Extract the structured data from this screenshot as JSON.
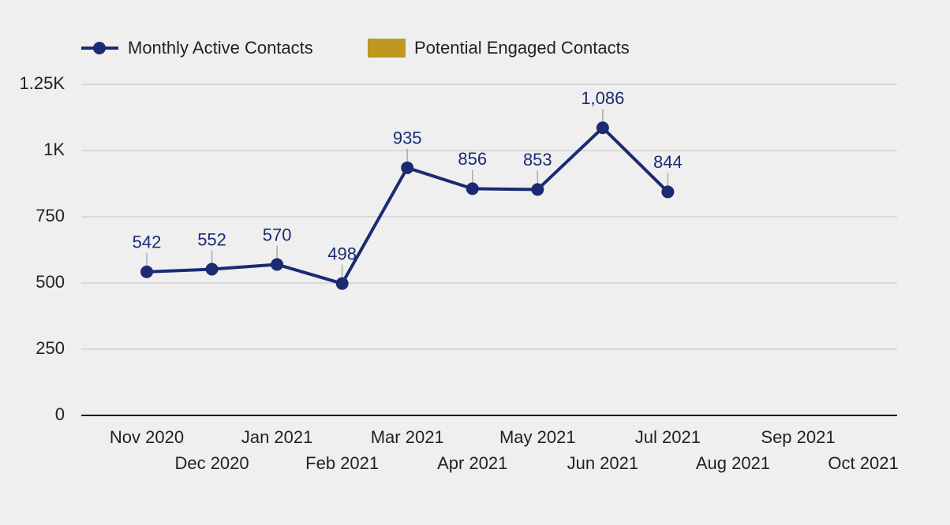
{
  "chart_data": {
    "type": "line",
    "categories": [
      "Nov 2020",
      "Dec 2020",
      "Jan 2021",
      "Feb 2021",
      "Mar 2021",
      "Apr 2021",
      "May 2021",
      "Jun 2021",
      "Jul 2021",
      "Aug 2021",
      "Sep 2021",
      "Oct 2021"
    ],
    "series": [
      {
        "name": "Monthly Active Contacts",
        "color": "#1b2a72",
        "values": [
          542,
          552,
          570,
          498,
          935,
          856,
          853,
          1086,
          844,
          null,
          null,
          null
        ],
        "value_labels": [
          "542",
          "552",
          "570",
          "498",
          "935",
          "856",
          "853",
          "1,086",
          "844",
          null,
          null,
          null
        ]
      },
      {
        "name": "Potential Engaged Contacts",
        "color": "#bf9822",
        "values": [
          null,
          null,
          null,
          null,
          null,
          null,
          null,
          null,
          null,
          null,
          null,
          null
        ]
      }
    ],
    "ylim": [
      0,
      1250
    ],
    "yticks": [
      0,
      250,
      500,
      750,
      {
        "value": 1000,
        "label": "1K"
      },
      {
        "value": 1250,
        "label": "1.25K"
      }
    ],
    "grid": true
  }
}
